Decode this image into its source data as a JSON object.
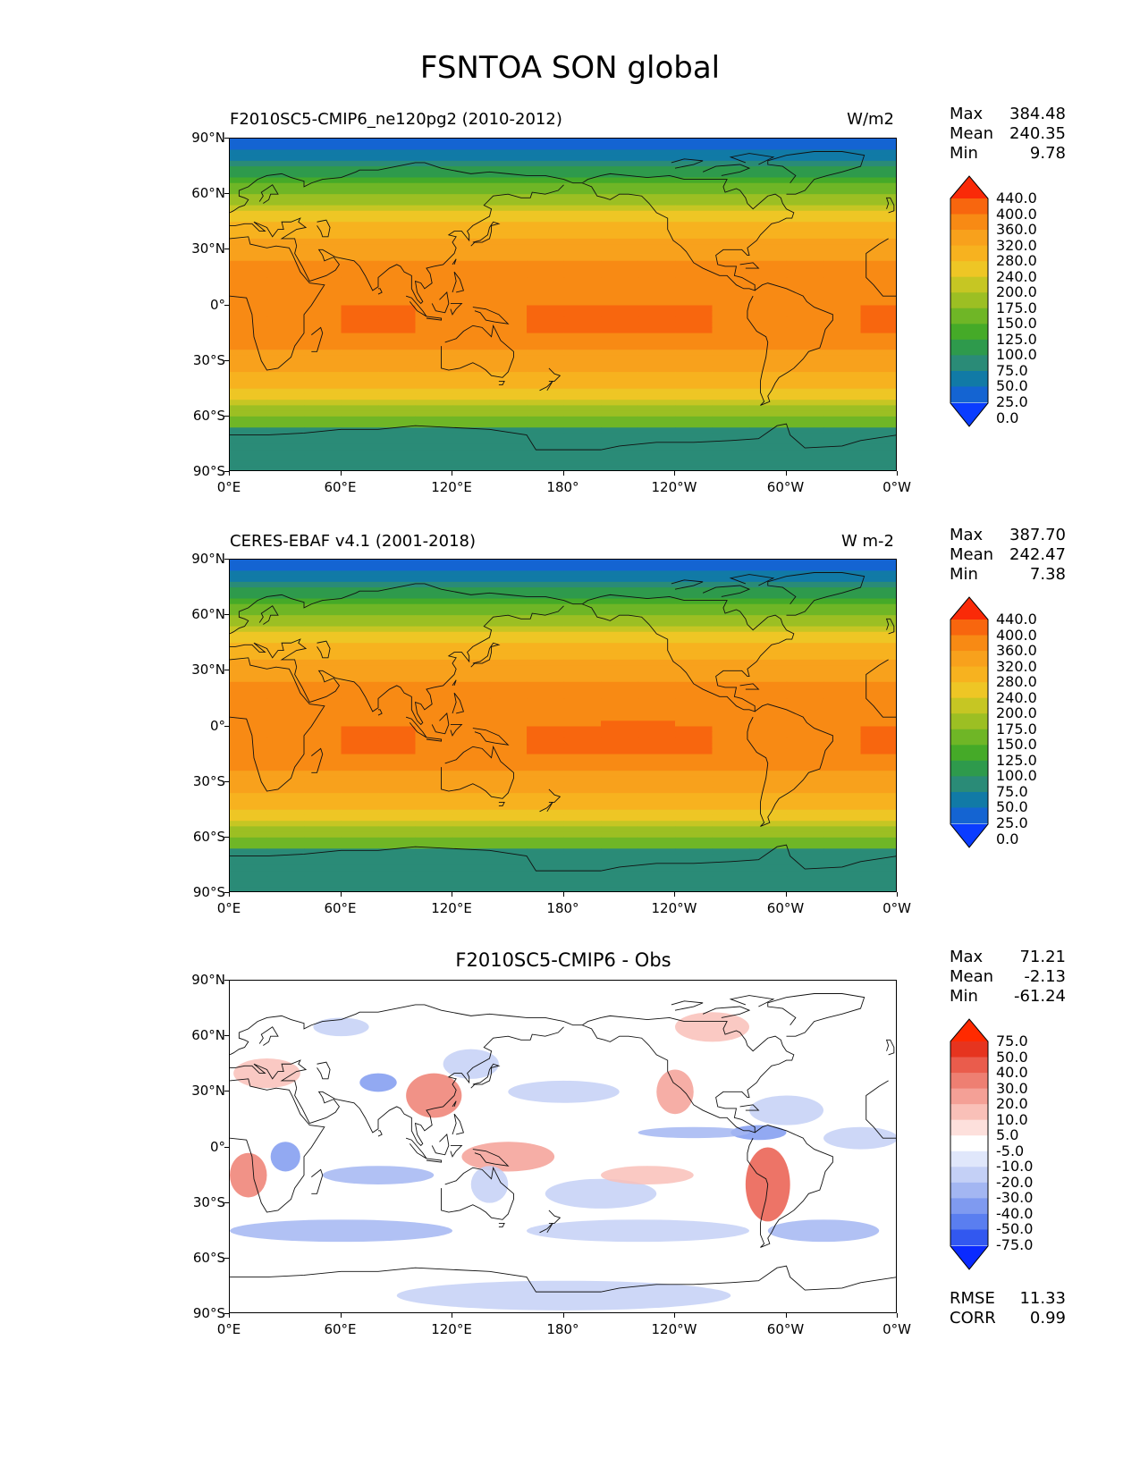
{
  "figure_title": "FSNTOA SON global",
  "panels": [
    {
      "title_left": "F2010SC5-CMIP6_ne120pg2 (2010-2012)",
      "title_right": "W/m2",
      "stats": {
        "max_label": "Max",
        "max": "384.48",
        "mean_label": "Mean",
        "mean": "240.35",
        "min_label": "Min",
        "min": "9.78"
      },
      "colorbar_labels": [
        "440.0",
        "400.0",
        "360.0",
        "320.0",
        "280.0",
        "240.0",
        "200.0",
        "175.0",
        "150.0",
        "125.0",
        "100.0",
        "75.0",
        "50.0",
        "25.0",
        "0.0"
      ]
    },
    {
      "title_left": "CERES-EBAF v4.1 (2001-2018)",
      "title_right": "W m-2",
      "stats": {
        "max_label": "Max",
        "max": "387.70",
        "mean_label": "Mean",
        "mean": "242.47",
        "min_label": "Min",
        "min": "7.38"
      },
      "colorbar_labels": [
        "440.0",
        "400.0",
        "360.0",
        "320.0",
        "280.0",
        "240.0",
        "200.0",
        "175.0",
        "150.0",
        "125.0",
        "100.0",
        "75.0",
        "50.0",
        "25.0",
        "0.0"
      ]
    },
    {
      "title_center": "F2010SC5-CMIP6 - Obs",
      "stats": {
        "max_label": "Max",
        "max": "71.21",
        "mean_label": "Mean",
        "mean": "-2.13",
        "min_label": "Min",
        "min": "-61.24"
      },
      "colorbar_labels": [
        "75.0",
        "50.0",
        "40.0",
        "30.0",
        "20.0",
        "10.0",
        "5.0",
        "-5.0",
        "-10.0",
        "-20.0",
        "-30.0",
        "-40.0",
        "-50.0",
        "-75.0"
      ],
      "metrics": {
        "rmse_label": "RMSE",
        "rmse": "11.33",
        "corr_label": "CORR",
        "corr": "0.99"
      }
    }
  ],
  "lat_ticks": [
    "90°N",
    "60°N",
    "30°N",
    "0°",
    "30°S",
    "60°S",
    "90°S"
  ],
  "lon_ticks": [
    "0°E",
    "60°E",
    "120°E",
    "180°",
    "120°W",
    "60°W",
    "0°W"
  ],
  "colors": {
    "abs_levels": [
      "#0a3cff",
      "#1464d2",
      "#117aa6",
      "#2a8b77",
      "#2e9a4c",
      "#45aa28",
      "#6fb626",
      "#9cbf23",
      "#c6c623",
      "#eec625",
      "#f7b21f",
      "#f8a11c",
      "#f88a14",
      "#f8660e",
      "#fa2a08"
    ],
    "diff_levels": [
      "#0a2aff",
      "#3258f0",
      "#5a7ef0",
      "#7f9af0",
      "#a3b6f2",
      "#c4d0f6",
      "#e0e7fb",
      "#ffffff",
      "#fde0dc",
      "#f9c0b8",
      "#f4a096",
      "#ee7f72",
      "#ea5c4c",
      "#e6341f",
      "#ff2a00"
    ]
  }
}
